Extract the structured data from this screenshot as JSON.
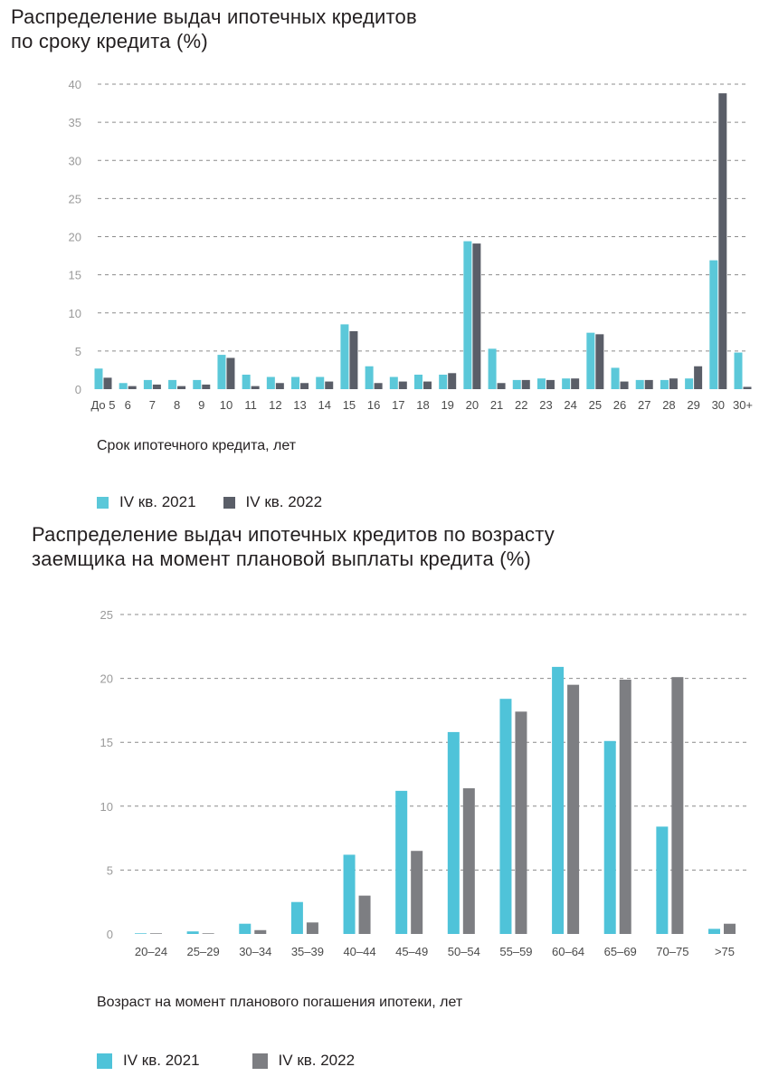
{
  "colors": {
    "series_2021_chart1": "#5bc8d9",
    "series_2022_chart1": "#5a5e68",
    "series_2021_chart2": "#4fc3d9",
    "series_2022_chart2": "#7d7e82",
    "grid": "#8c8c8c"
  },
  "chart_data": [
    {
      "type": "bar",
      "title": "Распределение выдач ипотечных кредитов по сроку кредита (%)",
      "title_lines": [
        "Распределение выдач ипотечных кредитов",
        "по сроку кредита (%)"
      ],
      "xlabel": "Срок ипотечного кредита, лет",
      "ylabel": "",
      "ylim": [
        0,
        40
      ],
      "yticks": [
        0,
        5,
        10,
        15,
        20,
        25,
        30,
        35,
        40
      ],
      "grid": true,
      "legend_position": "bottom-left",
      "categories": [
        "До 5",
        "6",
        "7",
        "8",
        "9",
        "10",
        "11",
        "12",
        "13",
        "14",
        "15",
        "16",
        "17",
        "18",
        "19",
        "20",
        "21",
        "22",
        "23",
        "24",
        "25",
        "26",
        "27",
        "28",
        "29",
        "30",
        "30+"
      ],
      "series": [
        {
          "name": "IV кв. 2021",
          "values": [
            2.7,
            0.8,
            1.2,
            1.2,
            1.2,
            4.5,
            1.9,
            1.6,
            1.6,
            1.6,
            8.5,
            3.0,
            1.6,
            1.9,
            1.9,
            19.4,
            5.3,
            1.2,
            1.4,
            1.4,
            7.4,
            2.8,
            1.2,
            1.2,
            1.4,
            16.9,
            4.8
          ]
        },
        {
          "name": "IV кв. 2022",
          "values": [
            1.5,
            0.4,
            0.6,
            0.4,
            0.6,
            4.1,
            0.4,
            0.8,
            0.8,
            1.0,
            7.6,
            0.8,
            1.0,
            1.0,
            2.1,
            19.1,
            0.8,
            1.2,
            1.2,
            1.4,
            7.2,
            1.0,
            1.2,
            1.4,
            3.0,
            38.8,
            0.3
          ]
        }
      ]
    },
    {
      "type": "bar",
      "title": "Распределение выдач ипотечных кредитов по возрасту заемщика на момент плановой выплаты кредита (%)",
      "title_lines": [
        "Распределение выдач ипотечных кредитов по возрасту",
        "заемщика на момент плановой выплаты кредита (%)"
      ],
      "xlabel": "Возраст на момент планового погашения ипотеки, лет",
      "ylabel": "",
      "ylim": [
        0,
        25
      ],
      "yticks": [
        0,
        5,
        10,
        15,
        20,
        25
      ],
      "grid": true,
      "legend_position": "bottom-left",
      "categories": [
        "20–24",
        "25–29",
        "30–34",
        "35–39",
        "40–44",
        "45–49",
        "50–54",
        "55–59",
        "60–64",
        "65–69",
        "70–75",
        ">75"
      ],
      "series": [
        {
          "name": "IV кв. 2021",
          "values": [
            0.05,
            0.2,
            0.8,
            2.5,
            6.2,
            11.2,
            15.8,
            18.4,
            20.9,
            15.1,
            8.4,
            0.4
          ]
        },
        {
          "name": "IV кв. 2022",
          "values": [
            0.05,
            0.05,
            0.3,
            0.9,
            3.0,
            6.5,
            11.4,
            17.4,
            19.5,
            19.9,
            20.1,
            0.8
          ]
        }
      ]
    }
  ]
}
